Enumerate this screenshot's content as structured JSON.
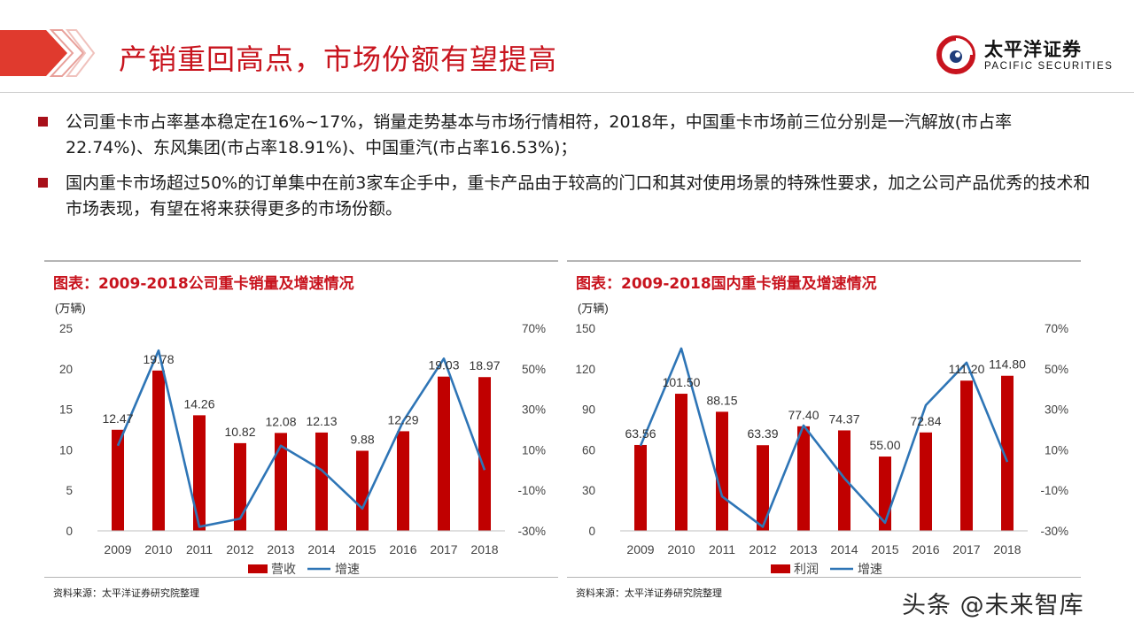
{
  "header": {
    "title": "产销重回高点，市场份额有望提高",
    "logo_cn": "太平洋证券",
    "logo_en": "PACIFIC SECURITIES",
    "accent_color": "#c8141e"
  },
  "bullets": [
    "公司重卡市占率基本稳定在16%~17%，销量走势基本与市场行情相符，2018年，中国重卡市场前三位分别是一汽解放(市占率22.74%)、东风集团(市占率18.91%)、中国重汽(市占率16.53%)；",
    "国内重卡市场超过50%的订单集中在前3家车企手中，重卡产品由于较高的门口和其对使用场景的特殊性要求，加之公司产品优秀的技术和市场表现，有望在将来获得更多的市场份额。"
  ],
  "panels": {
    "left": {
      "title": "图表：2009-2018公司重卡销量及增速情况",
      "source": "资料来源：太平洋证券研究院整理"
    },
    "right": {
      "title": "图表：2009-2018国内重卡销量及增速情况",
      "source": "资料来源：太平洋证券研究院整理"
    }
  },
  "watermark": "头条 @未来智库",
  "chart_data": [
    {
      "type": "bar",
      "title": "图表：2009-2018公司重卡销量及增速情况",
      "unit_label": "(万辆)",
      "categories": [
        "2009",
        "2010",
        "2011",
        "2012",
        "2013",
        "2014",
        "2015",
        "2016",
        "2017",
        "2018"
      ],
      "series": [
        {
          "name": "营收",
          "kind": "bar",
          "axis": "left",
          "color": "#c00000",
          "values": [
            12.47,
            19.78,
            14.26,
            10.82,
            12.08,
            12.13,
            9.88,
            12.29,
            19.03,
            18.97
          ],
          "labels": [
            "12.47",
            "19.78",
            "14.26",
            "10.82",
            "12.08",
            "12.13",
            "9.88",
            "12.29",
            "19.03",
            "18.97"
          ]
        },
        {
          "name": "增速",
          "kind": "line",
          "axis": "right",
          "color": "#2e75b6",
          "values": [
            0.12,
            0.59,
            -0.28,
            -0.24,
            0.12,
            0.0,
            -0.19,
            0.24,
            0.55,
            0.0
          ]
        }
      ],
      "y_left": {
        "min": 0,
        "max": 25,
        "ticks": [
          0,
          5,
          10,
          15,
          20,
          25
        ],
        "tick_labels": [
          "0",
          "5",
          "10",
          "15",
          "20",
          "25"
        ]
      },
      "y_right": {
        "min": -0.3,
        "max": 0.7,
        "ticks": [
          -0.3,
          -0.1,
          0.1,
          0.3,
          0.5,
          0.7
        ],
        "tick_labels": [
          "-30%",
          "-10%",
          "10%",
          "30%",
          "50%",
          "70%"
        ]
      },
      "legend_position": "bottom",
      "grid": false
    },
    {
      "type": "bar",
      "title": "图表：2009-2018国内重卡销量及增速情况",
      "unit_label": "(万辆)",
      "categories": [
        "2009",
        "2010",
        "2011",
        "2012",
        "2013",
        "2014",
        "2015",
        "2016",
        "2017",
        "2018"
      ],
      "series": [
        {
          "name": "利润",
          "kind": "bar",
          "axis": "left",
          "color": "#c00000",
          "values": [
            63.56,
            101.5,
            88.15,
            63.39,
            77.4,
            74.37,
            55.0,
            72.84,
            111.2,
            114.8
          ],
          "labels": [
            "63.56",
            "101.50",
            "88.15",
            "63.39",
            "77.40",
            "74.37",
            "55.00",
            "72.84",
            "111.20",
            "114.80"
          ]
        },
        {
          "name": "增速",
          "kind": "line",
          "axis": "right",
          "color": "#2e75b6",
          "values": [
            0.12,
            0.6,
            -0.13,
            -0.28,
            0.22,
            -0.04,
            -0.26,
            0.32,
            0.53,
            0.04
          ]
        }
      ],
      "y_left": {
        "min": 0,
        "max": 150,
        "ticks": [
          0,
          30,
          60,
          90,
          120,
          150
        ],
        "tick_labels": [
          "0",
          "30",
          "60",
          "90",
          "120",
          "150"
        ]
      },
      "y_right": {
        "min": -0.3,
        "max": 0.7,
        "ticks": [
          -0.3,
          -0.1,
          0.1,
          0.3,
          0.5,
          0.7
        ],
        "tick_labels": [
          "-30%",
          "-10%",
          "10%",
          "30%",
          "50%",
          "70%"
        ]
      },
      "legend_position": "bottom",
      "grid": false
    }
  ]
}
